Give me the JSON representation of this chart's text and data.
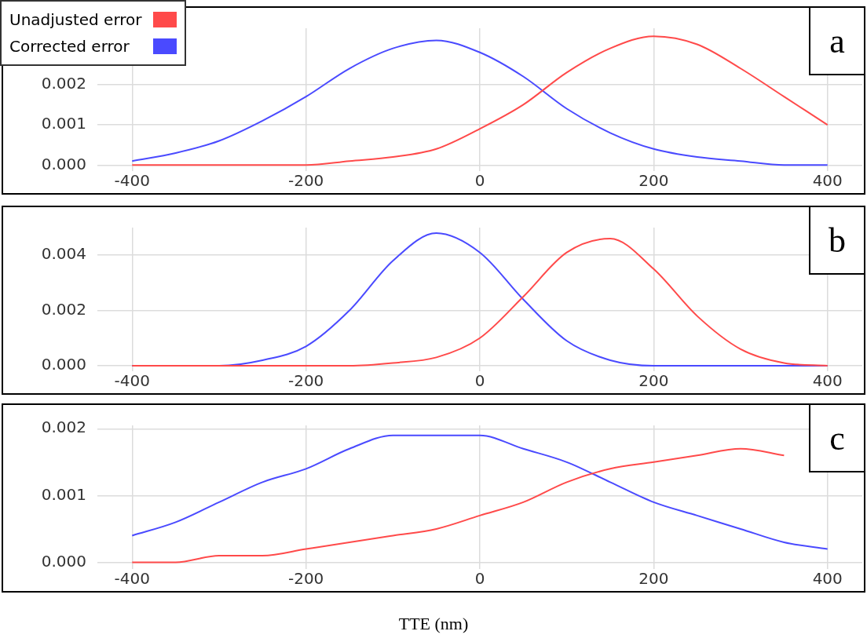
{
  "chart_data": [
    {
      "type": "line",
      "annotations": [
        "a"
      ],
      "legend": "top left",
      "grid": true,
      "marker": "none",
      "xlim": [
        -440,
        440
      ],
      "xticks": [
        -400,
        -200,
        0,
        200,
        400
      ],
      "ylim": [
        -0.00015,
        0.0034
      ],
      "yticks": [
        {
          "value": 0,
          "label": "0.000"
        },
        {
          "value": 0.001,
          "label": "0.001"
        },
        {
          "value": 0.002,
          "label": "0.002"
        }
      ],
      "x": [
        -400,
        -350,
        -300,
        -250,
        -200,
        -150,
        -100,
        -50,
        0,
        50,
        100,
        150,
        200,
        250,
        300,
        350,
        400
      ],
      "series": [
        {
          "name": "Unadjusted error",
          "color": "#ff4a4a",
          "values": [
            0,
            0,
            0,
            0,
            0,
            0.0001,
            0.0002,
            0.0004,
            0.0009,
            0.0015,
            0.0023,
            0.0029,
            0.0032,
            0.003,
            0.0024,
            0.0017,
            0.001
          ]
        },
        {
          "name": "Corrected error",
          "color": "#4a4aff",
          "values": [
            0.0001,
            0.0003,
            0.0006,
            0.0011,
            0.0017,
            0.0024,
            0.0029,
            0.0031,
            0.0028,
            0.0022,
            0.0014,
            0.0008,
            0.0004,
            0.0002,
            0.0001,
            0,
            0
          ]
        }
      ]
    },
    {
      "type": "line",
      "annotations": [
        "b"
      ],
      "grid": true,
      "marker": "none",
      "xlim": [
        -440,
        440
      ],
      "xticks": [
        -400,
        -200,
        0,
        200,
        400
      ],
      "ylim": [
        -0.0002,
        0.005
      ],
      "yticks": [
        {
          "value": 0,
          "label": "0.000"
        },
        {
          "value": 0.002,
          "label": "0.002"
        },
        {
          "value": 0.004,
          "label": "0.004"
        }
      ],
      "x": [
        -400,
        -350,
        -300,
        -250,
        -200,
        -150,
        -100,
        -50,
        0,
        50,
        100,
        150,
        200,
        250,
        300,
        350,
        400
      ],
      "series": [
        {
          "color": "#ff4a4a",
          "values": [
            0,
            0,
            0,
            0,
            0,
            0,
            0.0001,
            0.0003,
            0.001,
            0.0025,
            0.0041,
            0.0046,
            0.0035,
            0.0018,
            0.0006,
            0.0001,
            0
          ]
        },
        {
          "color": "#4a4aff",
          "values": [
            0,
            0,
            0,
            0.0002,
            0.0007,
            0.002,
            0.0038,
            0.0048,
            0.0041,
            0.0024,
            0.0009,
            0.0002,
            0,
            0,
            0,
            0,
            0
          ]
        }
      ]
    },
    {
      "type": "line",
      "annotations": [
        "c"
      ],
      "xlabel": "TTE (nm)",
      "grid": true,
      "marker": "none",
      "xlim": [
        -440,
        440
      ],
      "xticks": [
        -400,
        -200,
        0,
        200,
        400
      ],
      "ylim": [
        -0.0001,
        0.00205
      ],
      "yticks": [
        {
          "value": 0,
          "label": "0.000"
        },
        {
          "value": 0.001,
          "label": "0.001"
        },
        {
          "value": 0.002,
          "label": "0.002"
        }
      ],
      "x": [
        -400,
        -350,
        -300,
        -250,
        -200,
        -150,
        -100,
        -50,
        0,
        50,
        100,
        150,
        200,
        250,
        300,
        350,
        400
      ],
      "series": [
        {
          "color": "#ff4a4a",
          "values": [
            0,
            0,
            0.0001,
            0.0001,
            0.0002,
            0.0003,
            0.0004,
            0.0005,
            0.0007,
            0.0009,
            0.0012,
            0.0014,
            0.0015,
            0.0016,
            0.0017,
            0.0016,
            null
          ]
        },
        {
          "color": "#4a4aff",
          "values": [
            0.0004,
            0.0006,
            0.0009,
            0.0012,
            0.0014,
            0.0017,
            0.0019,
            0.0019,
            0.0019,
            0.0017,
            0.0015,
            0.0012,
            0.0009,
            0.0007,
            0.0005,
            0.0003,
            0.0002
          ]
        }
      ]
    }
  ]
}
